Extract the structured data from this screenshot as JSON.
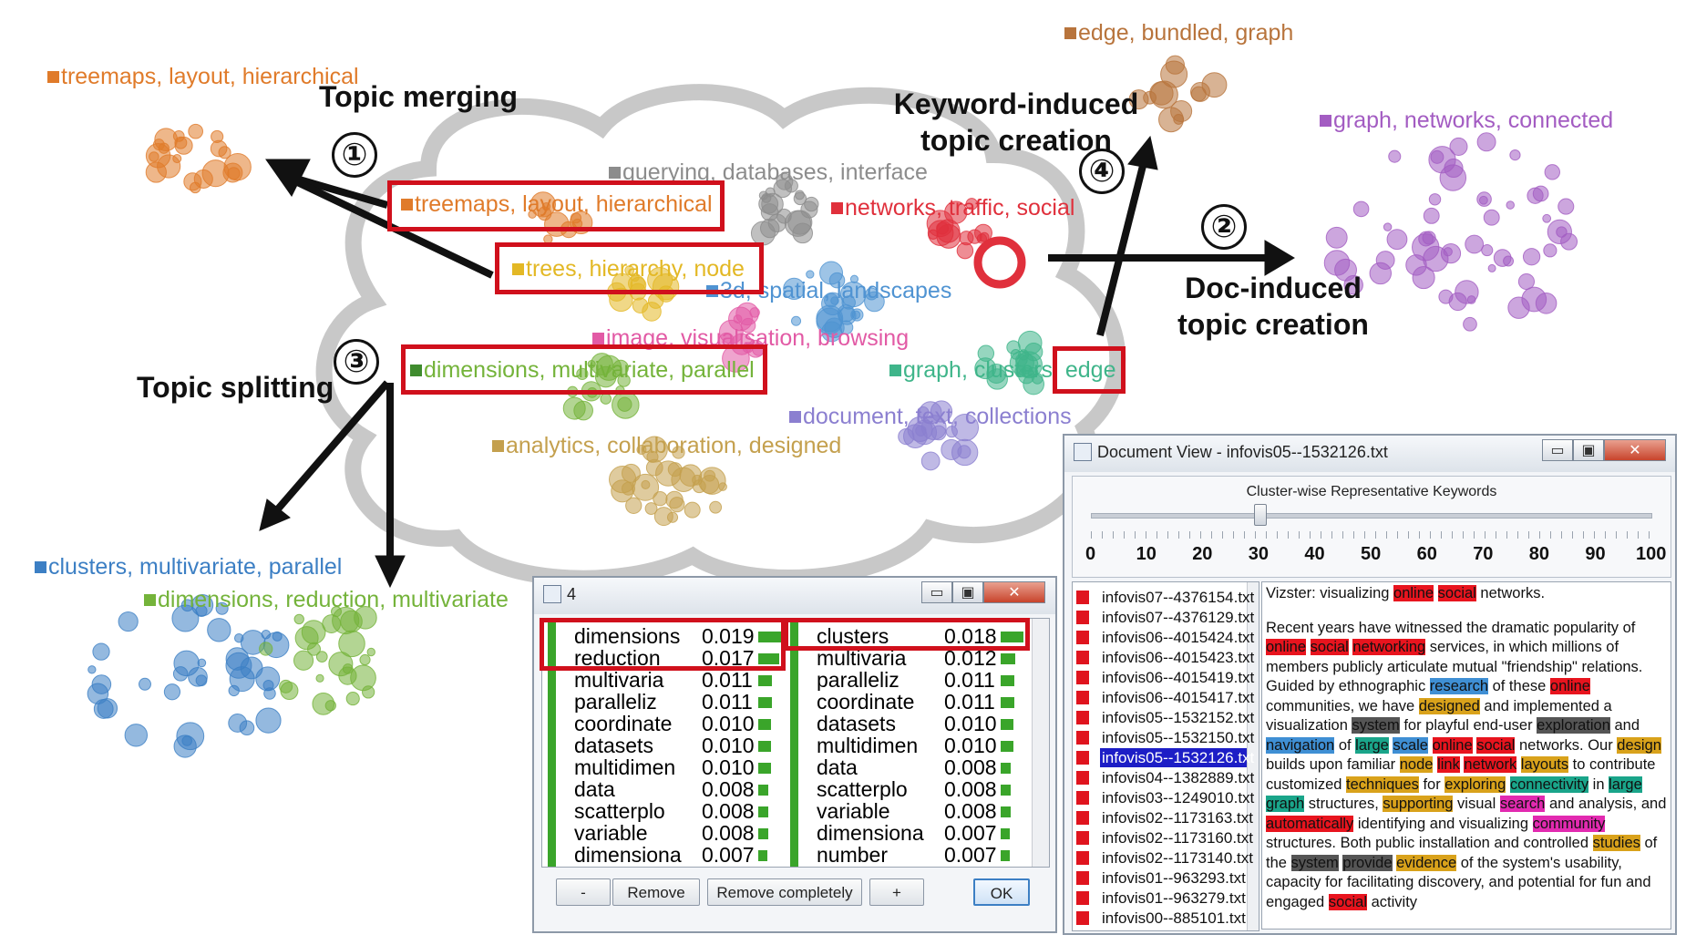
{
  "callouts": {
    "topic_merging": "Topic merging",
    "topic_splitting": "Topic splitting",
    "keyword_induced_1": "Keyword-induced",
    "keyword_induced_2": "topic creation",
    "doc_induced_1": "Doc-induced",
    "doc_induced_2": "topic creation",
    "step1": "①",
    "step2": "②",
    "step3": "③",
    "step4": "④"
  },
  "topics": [
    {
      "label": "treemaps, layout, hierarchical",
      "color": "#e07b2a"
    },
    {
      "label": "edge, bundled, graph",
      "color": "#b8743c"
    },
    {
      "label": "graph, networks, connected",
      "color": "#a35cc2"
    },
    {
      "label": "querying, databases, interface",
      "color": "#8c8c8c"
    },
    {
      "label": "treemaps, layout, hierarchical",
      "color": "#e07b2a"
    },
    {
      "label": "networks, traffic, social",
      "color": "#e0303c"
    },
    {
      "label": "trees, hierarchy, node",
      "color": "#e3b825"
    },
    {
      "label": "3d, spatial, landscapes",
      "color": "#4f93d2"
    },
    {
      "label": "image, visualisation, browsing",
      "color": "#e25aa5"
    },
    {
      "label": "dimensions, multivariate, parallel",
      "color": "#74b33a"
    },
    {
      "label": "graph, clusters, edge",
      "color": "#3fb58a"
    },
    {
      "label": "document, text, collections",
      "color": "#8b7fd0"
    },
    {
      "label": "analytics, collaboration, designed",
      "color": "#c4a04e"
    },
    {
      "label": "clusters, multivariate, parallel",
      "color": "#3c7fc4"
    },
    {
      "label": "dimensions, reduction, multivariate",
      "color": "#74b33a"
    }
  ],
  "keyword_dialog": {
    "title": "4",
    "left_column": [
      {
        "word": "dimensions",
        "value": "0.019",
        "v": 0.019
      },
      {
        "word": "reduction",
        "value": "0.017",
        "v": 0.017
      },
      {
        "word": "multivaria",
        "value": "0.011",
        "v": 0.011
      },
      {
        "word": "paralleliz",
        "value": "0.011",
        "v": 0.011
      },
      {
        "word": "coordinate",
        "value": "0.010",
        "v": 0.01
      },
      {
        "word": "datasets",
        "value": "0.010",
        "v": 0.01
      },
      {
        "word": "multidimen",
        "value": "0.010",
        "v": 0.01
      },
      {
        "word": "data",
        "value": "0.008",
        "v": 0.008
      },
      {
        "word": "scatterplo",
        "value": "0.008",
        "v": 0.008
      },
      {
        "word": "variable",
        "value": "0.008",
        "v": 0.008
      },
      {
        "word": "dimensiona",
        "value": "0.007",
        "v": 0.007
      }
    ],
    "right_column": [
      {
        "word": "clusters",
        "value": "0.018",
        "v": 0.018
      },
      {
        "word": "multivaria",
        "value": "0.012",
        "v": 0.012
      },
      {
        "word": "paralleliz",
        "value": "0.011",
        "v": 0.011
      },
      {
        "word": "coordinate",
        "value": "0.011",
        "v": 0.011
      },
      {
        "word": "datasets",
        "value": "0.010",
        "v": 0.01
      },
      {
        "word": "multidimen",
        "value": "0.010",
        "v": 0.01
      },
      {
        "word": "data",
        "value": "0.008",
        "v": 0.008
      },
      {
        "word": "scatterplo",
        "value": "0.008",
        "v": 0.008
      },
      {
        "word": "variable",
        "value": "0.008",
        "v": 0.008
      },
      {
        "word": "dimensiona",
        "value": "0.007",
        "v": 0.007
      },
      {
        "word": "number",
        "value": "0.007",
        "v": 0.007
      }
    ],
    "buttons": {
      "minus": "-",
      "remove": "Remove",
      "remove_completely": "Remove completely",
      "plus": "+",
      "ok": "OK"
    }
  },
  "doc_view": {
    "title": "Document View - infovis05--1532126.txt",
    "slider_label": "Cluster-wise Representative Keywords",
    "slider_ticks": [
      "0",
      "10",
      "20",
      "30",
      "40",
      "50",
      "60",
      "70",
      "80",
      "90",
      "100"
    ],
    "slider_value": 30,
    "files": [
      "infovis07--4376154.txt",
      "infovis07--4376129.txt",
      "infovis06--4015424.txt",
      "infovis06--4015423.txt",
      "infovis06--4015419.txt",
      "infovis06--4015417.txt",
      "infovis05--1532152.txt",
      "infovis05--1532150.txt",
      "infovis05--1532126.txt",
      "infovis04--1382889.txt",
      "infovis03--1249010.txt",
      "infovis02--1173163.txt",
      "infovis02--1173160.txt",
      "infovis02--1173140.txt",
      "infovis01--963293.txt",
      "infovis01--963279.txt",
      "infovis00--885101.txt"
    ],
    "selected_file": "infovis05--1532126.txt"
  }
}
